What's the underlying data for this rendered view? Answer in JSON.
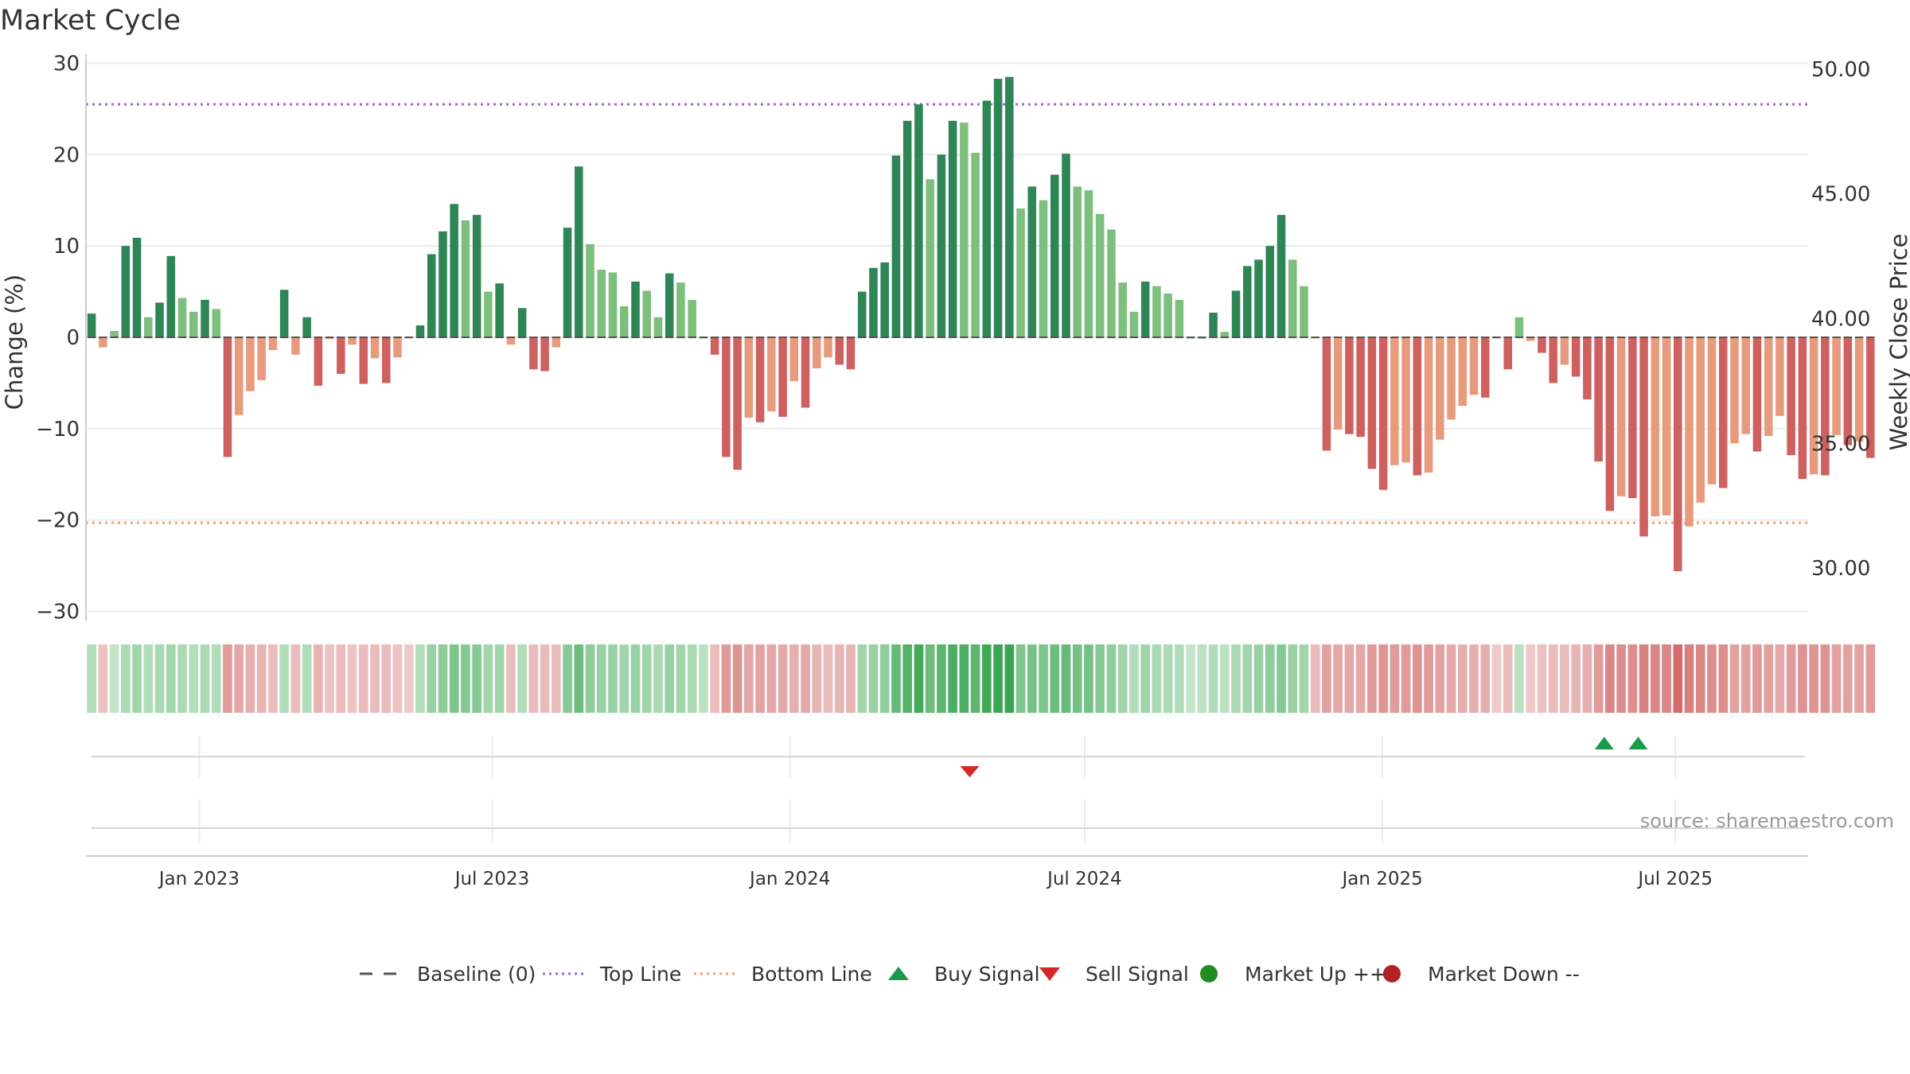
{
  "title": "Market Cycle",
  "source": "source: sharemaestro.com",
  "colors": {
    "up_dark": "#2e8555",
    "up_light": "#7dbf7d",
    "down_dark": "#cf6060",
    "down_light": "#e89b7c",
    "top_line": "#9a6ad6",
    "bottom_line": "#f0a070",
    "buy": "#1a9a4a",
    "sell": "#d62828",
    "market_up": "#228b22",
    "market_down": "#b22222",
    "baseline": "#555555"
  },
  "legend": [
    {
      "label": "Baseline (0)",
      "symbol": "dash"
    },
    {
      "label": "Top Line",
      "symbol": "dotted-purple"
    },
    {
      "label": "Bottom Line",
      "symbol": "dotted-orange"
    },
    {
      "label": "Buy Signal",
      "symbol": "triangle-up"
    },
    {
      "label": "Sell Signal",
      "symbol": "triangle-down"
    },
    {
      "label": "Market Up ++",
      "symbol": "dot-green"
    },
    {
      "label": "Market Down --",
      "symbol": "dot-red"
    }
  ],
  "chart_data": {
    "type": "bar",
    "xlabel": "",
    "ylabel": "Change (%)",
    "ylabel_right": "Weekly Close Price",
    "ylim": [
      -31,
      31
    ],
    "yticks": [
      30,
      20,
      10,
      0,
      -10,
      -20,
      -30
    ],
    "yticks_labels": [
      "30",
      "20",
      "10",
      "0",
      "−10",
      "−20",
      "−30"
    ],
    "right_ylim": [
      27.9,
      50.6
    ],
    "right_ticks": [
      "50.00",
      "45.00",
      "40.00",
      "35.00",
      "30.00"
    ],
    "top_line": 25.5,
    "bottom_line": -20.3,
    "grid": true,
    "legend_position": "bottom",
    "x_start": "2022-10-23",
    "x_end": "2025-09-21",
    "date_ticks": [
      {
        "date": "2023-01-01",
        "label": "Jan 2023"
      },
      {
        "date": "2023-07-01",
        "label": "Jul 2023"
      },
      {
        "date": "2024-01-01",
        "label": "Jan 2024"
      },
      {
        "date": "2024-07-01",
        "label": "Jul 2024"
      },
      {
        "date": "2025-01-01",
        "label": "Jan 2025"
      },
      {
        "date": "2025-07-01",
        "label": "Jul 2025"
      }
    ],
    "start_week": "2022-10-23",
    "values": [
      2.6,
      -1.1,
      0.7,
      10,
      10.9,
      2.2,
      3.8,
      8.9,
      4.3,
      2.8,
      4.1,
      3.1,
      -13.1,
      -8.5,
      -5.9,
      -4.7,
      -1.4,
      5.2,
      -1.9,
      2.2,
      -5.3,
      -0.2,
      -4,
      -0.8,
      -5.1,
      -2.3,
      -5,
      -2.2,
      -0.1,
      1.3,
      9.1,
      11.6,
      14.6,
      12.8,
      13.4,
      5,
      5.9,
      -0.8,
      3.2,
      -3.5,
      -3.7,
      -1.1,
      12,
      18.7,
      10.2,
      7.4,
      7.1,
      3.4,
      6.1,
      5.1,
      2.2,
      7,
      6,
      4.1,
      0,
      -1.9,
      -13.1,
      -14.5,
      -8.8,
      -9.3,
      -8.1,
      -8.7,
      -4.8,
      -7.7,
      -3.4,
      -2.2,
      -3,
      -3.5,
      5,
      7.6,
      8.2,
      19.9,
      23.7,
      25.5,
      17.3,
      20,
      23.7,
      23.5,
      20.2,
      25.9,
      28.3,
      28.5,
      14.1,
      16.5,
      15,
      17.8,
      20.1,
      16.5,
      16.1,
      13.5,
      11.8,
      6,
      2.8,
      6.1,
      5.6,
      4.8,
      4.1,
      0,
      0,
      2.7,
      0.6,
      5.1,
      7.8,
      8.5,
      10,
      13.4,
      8.5,
      5.6,
      -0.1,
      -12.4,
      -10.1,
      -10.6,
      -10.9,
      -14.4,
      -16.7,
      -14,
      -13.7,
      -15.1,
      -14.8,
      -11.2,
      -9,
      -7.5,
      -6.3,
      -6.6,
      -0.1,
      -3.5,
      2.2,
      -0.4,
      -1.7,
      -5,
      -3,
      -4.3,
      -6.8,
      -13.6,
      -19,
      -17.4,
      -17.6,
      -21.8,
      -19.6,
      -19.5,
      -25.6,
      -20.7,
      -18.1,
      -16.1,
      -16.5,
      -11.6,
      -10.6,
      -12.5,
      -10.8,
      -8.6,
      -12.9,
      -15.5,
      -15,
      -15.1,
      -10.7,
      -11.8,
      -11.4,
      -13.2
    ],
    "intensity_strip": [
      0.3,
      0.25,
      0.2,
      0.35,
      0.4,
      0.3,
      0.35,
      0.4,
      0.35,
      0.3,
      0.35,
      0.3,
      0.55,
      0.45,
      0.4,
      0.35,
      0.3,
      0.3,
      0.3,
      0.3,
      0.35,
      0.25,
      0.3,
      0.25,
      0.3,
      0.3,
      0.3,
      0.25,
      0.2,
      0.3,
      0.45,
      0.5,
      0.6,
      0.55,
      0.55,
      0.4,
      0.4,
      0.3,
      0.3,
      0.3,
      0.3,
      0.3,
      0.55,
      0.7,
      0.5,
      0.45,
      0.45,
      0.4,
      0.45,
      0.4,
      0.35,
      0.45,
      0.4,
      0.35,
      0.25,
      0.3,
      0.55,
      0.6,
      0.45,
      0.5,
      0.45,
      0.45,
      0.4,
      0.45,
      0.35,
      0.3,
      0.35,
      0.35,
      0.4,
      0.45,
      0.5,
      0.75,
      0.85,
      0.95,
      0.7,
      0.8,
      0.9,
      0.9,
      0.8,
      0.95,
      1,
      1,
      0.6,
      0.65,
      0.6,
      0.7,
      0.75,
      0.65,
      0.65,
      0.55,
      0.5,
      0.4,
      0.3,
      0.4,
      0.35,
      0.35,
      0.3,
      0.2,
      0.25,
      0.3,
      0.25,
      0.35,
      0.4,
      0.45,
      0.5,
      0.55,
      0.45,
      0.4,
      0.3,
      0.5,
      0.45,
      0.45,
      0.45,
      0.55,
      0.6,
      0.55,
      0.55,
      0.6,
      0.55,
      0.5,
      0.45,
      0.4,
      0.4,
      0.4,
      0.2,
      0.3,
      0.25,
      0.2,
      0.25,
      0.3,
      0.3,
      0.35,
      0.4,
      0.55,
      0.7,
      0.65,
      0.65,
      0.75,
      0.7,
      0.7,
      0.9,
      0.75,
      0.7,
      0.65,
      0.65,
      0.5,
      0.5,
      0.55,
      0.5,
      0.45,
      0.55,
      0.6,
      0.6,
      0.6,
      0.5,
      0.5,
      0.5,
      0.55
    ],
    "buy_signals": [
      "2025-05-18",
      "2025-06-08"
    ],
    "sell_signals": [
      "2024-04-21"
    ]
  }
}
